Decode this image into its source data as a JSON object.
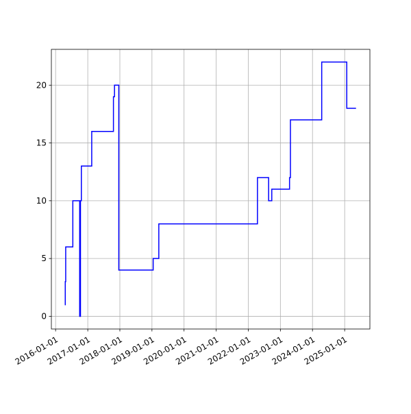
{
  "chart_data": {
    "type": "line",
    "drawstyle": "steps-post",
    "grid": true,
    "color": "#0000ff",
    "x": [
      "2016-04-15",
      "2016-04-20",
      "2016-04-25",
      "2016-07-15",
      "2016-10-01",
      "2016-10-10",
      "2016-10-20",
      "2017-02-15",
      "2017-10-20",
      "2017-11-01",
      "2017-12-20",
      "2019-01-15",
      "2019-03-20",
      "2022-04-15",
      "2022-08-20",
      "2022-09-25",
      "2023-04-15",
      "2023-04-25",
      "2024-04-15",
      "2025-01-25",
      "2025-05-10"
    ],
    "values": [
      1,
      3,
      6,
      10,
      0,
      10,
      13,
      16,
      19,
      20,
      4,
      5,
      8,
      12,
      10,
      11,
      12,
      17,
      22,
      18,
      18
    ],
    "xlim": [
      "2015-11-14",
      "2025-10-15"
    ],
    "xticks": [
      "2016-01-01",
      "2017-01-01",
      "2018-01-01",
      "2019-01-01",
      "2020-01-01",
      "2021-01-01",
      "2022-01-01",
      "2023-01-01",
      "2024-01-01",
      "2025-01-01"
    ],
    "ylim": [
      -1.1,
      23.1
    ],
    "yticks": [
      0,
      5,
      10,
      15,
      20
    ]
  }
}
